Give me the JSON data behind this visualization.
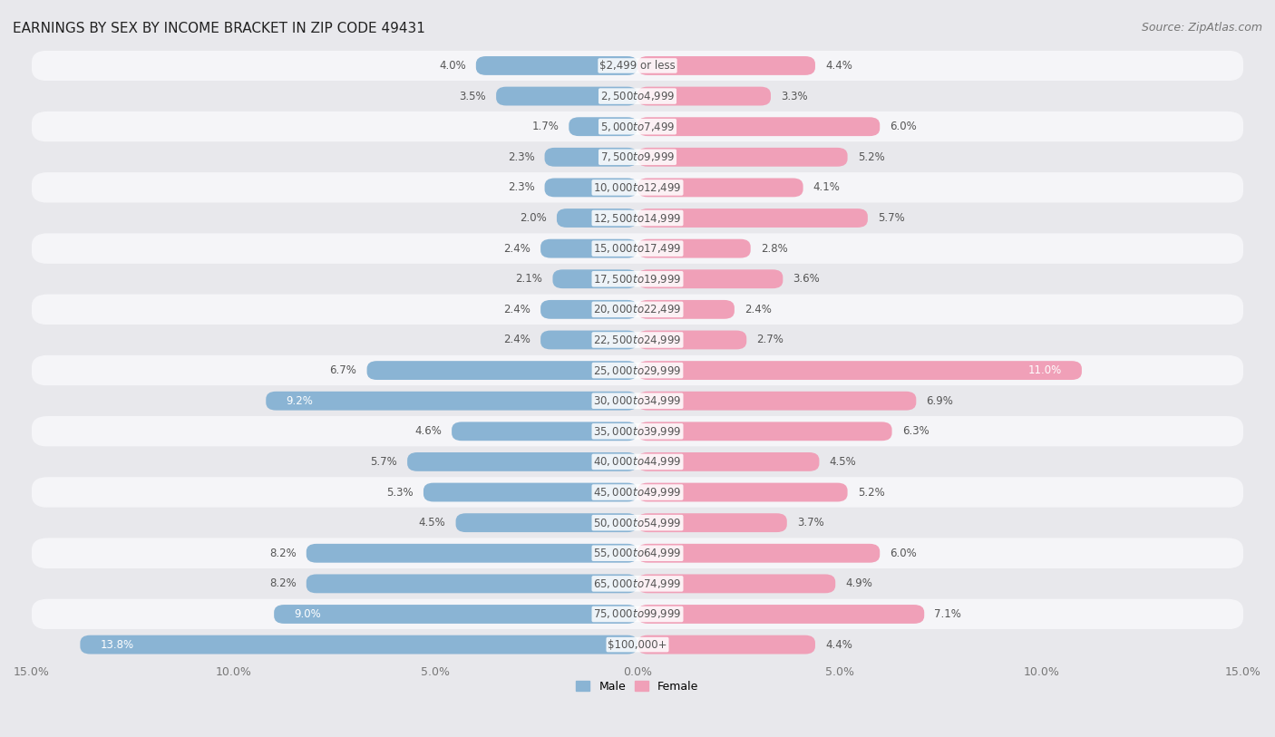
{
  "title": "EARNINGS BY SEX BY INCOME BRACKET IN ZIP CODE 49431",
  "source": "Source: ZipAtlas.com",
  "categories": [
    "$2,499 or less",
    "$2,500 to $4,999",
    "$5,000 to $7,499",
    "$7,500 to $9,999",
    "$10,000 to $12,499",
    "$12,500 to $14,999",
    "$15,000 to $17,499",
    "$17,500 to $19,999",
    "$20,000 to $22,499",
    "$22,500 to $24,999",
    "$25,000 to $29,999",
    "$30,000 to $34,999",
    "$35,000 to $39,999",
    "$40,000 to $44,999",
    "$45,000 to $49,999",
    "$50,000 to $54,999",
    "$55,000 to $64,999",
    "$65,000 to $74,999",
    "$75,000 to $99,999",
    "$100,000+"
  ],
  "male_values": [
    4.0,
    3.5,
    1.7,
    2.3,
    2.3,
    2.0,
    2.4,
    2.1,
    2.4,
    2.4,
    6.7,
    9.2,
    4.6,
    5.7,
    5.3,
    4.5,
    8.2,
    8.2,
    9.0,
    13.8
  ],
  "female_values": [
    4.4,
    3.3,
    6.0,
    5.2,
    4.1,
    5.7,
    2.8,
    3.6,
    2.4,
    2.7,
    11.0,
    6.9,
    6.3,
    4.5,
    5.2,
    3.7,
    6.0,
    4.9,
    7.1,
    4.4
  ],
  "male_color": "#8ab4d4",
  "female_color": "#f0a0b8",
  "male_label": "Male",
  "female_label": "Female",
  "xlim": 15.0,
  "bg_color": "#e8e8ec",
  "row_light_color": "#f5f5f8",
  "row_dark_color": "#e8e8ec",
  "title_fontsize": 11,
  "source_fontsize": 9,
  "label_fontsize": 8.5,
  "tick_fontsize": 9,
  "cat_label_color": "#555555",
  "value_label_color": "#555555",
  "value_label_inside_color": "#ffffff"
}
